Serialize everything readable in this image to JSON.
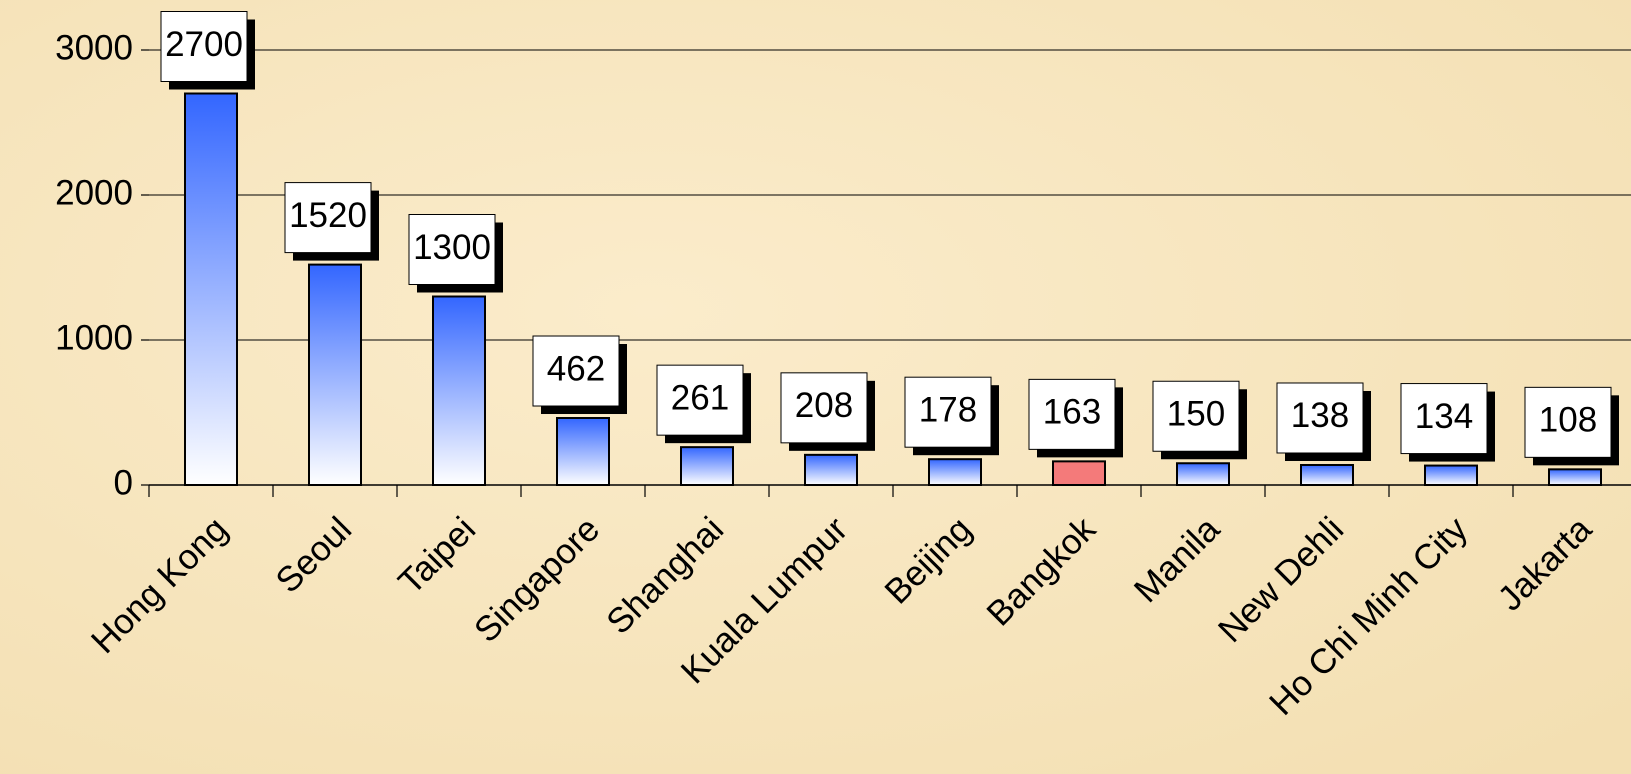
{
  "chart_data": {
    "type": "bar",
    "categories": [
      "Hong Kong",
      "Seoul",
      "Taipei",
      "Singapore",
      "Shanghai",
      "Kuala Lumpur",
      "Beijing",
      "Bangkok",
      "Manila",
      "New Dehli",
      "Ho Chi Minh City",
      "Jakarta"
    ],
    "values": [
      2700,
      1520,
      1300,
      462,
      261,
      208,
      178,
      163,
      150,
      138,
      134,
      108
    ],
    "colors": [
      "#3366ff",
      "#3366ff",
      "#3366ff",
      "#3366ff",
      "#3366ff",
      "#3366ff",
      "#3366ff",
      "#f47a7a",
      "#3366ff",
      "#3366ff",
      "#3366ff",
      "#3366ff"
    ],
    "ylim": [
      0,
      3000
    ],
    "yticks": [
      0,
      1000,
      2000,
      3000
    ],
    "grid": true
  }
}
